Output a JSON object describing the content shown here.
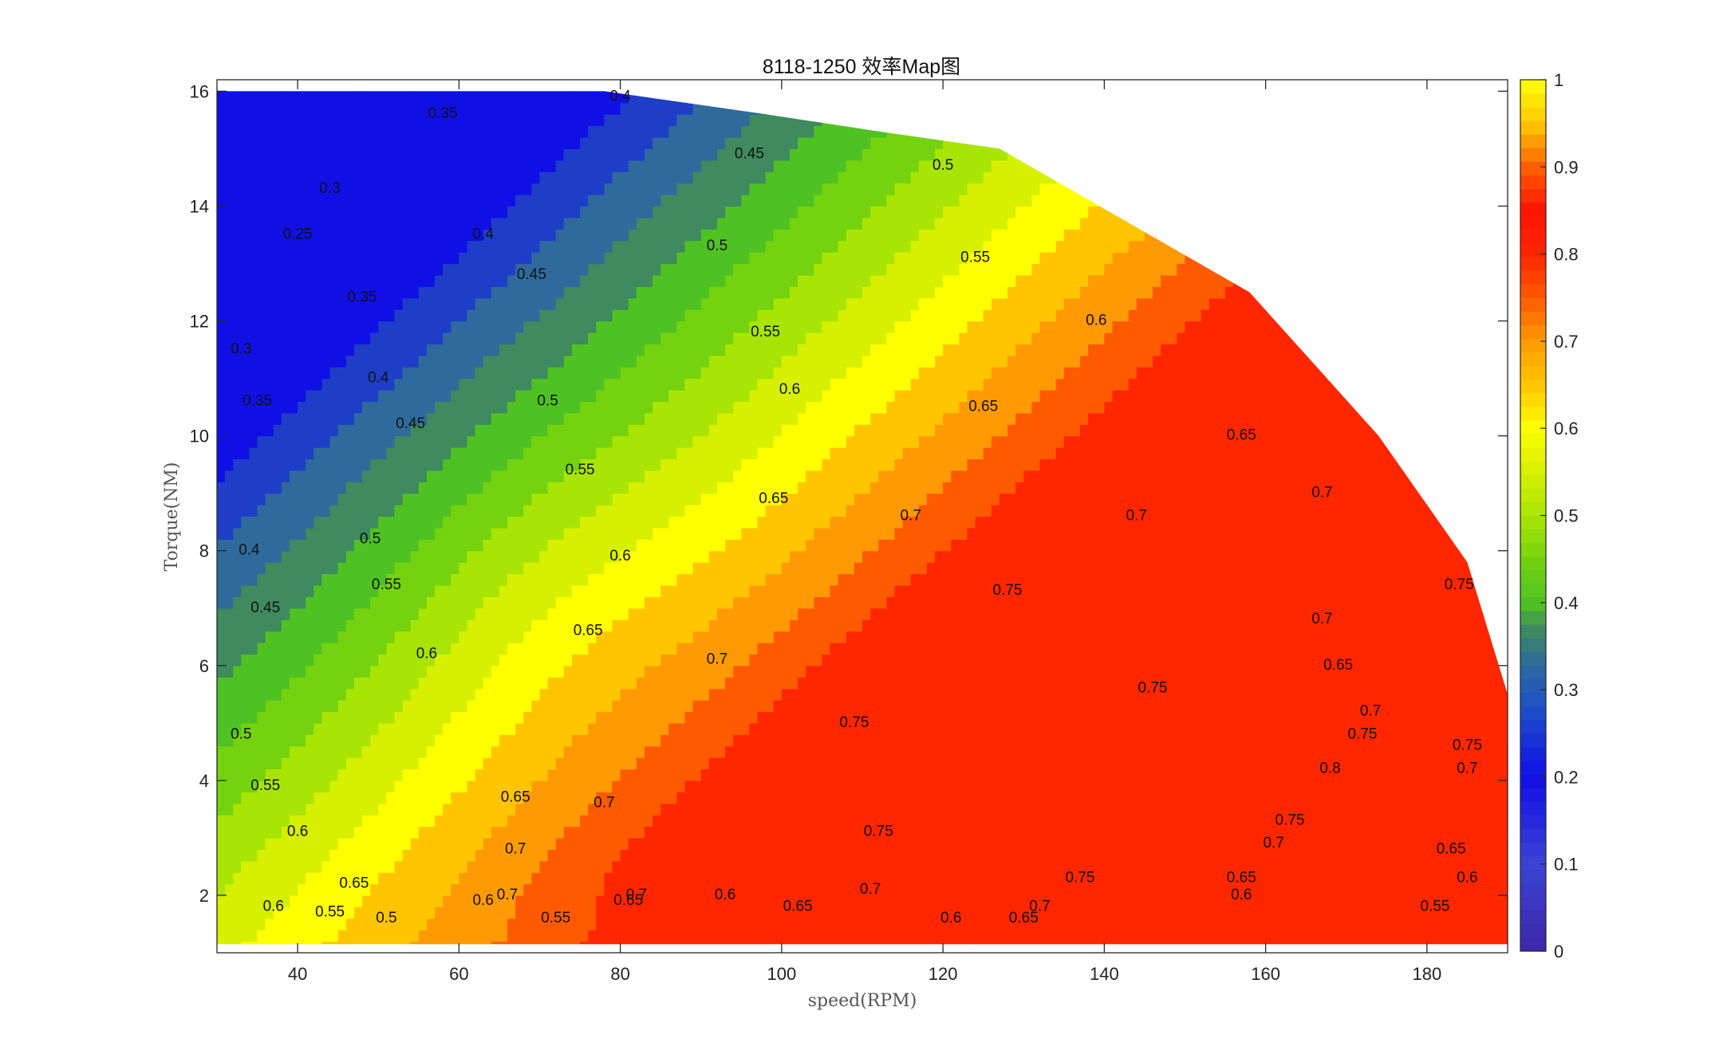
{
  "chart_data": {
    "type": "heatmap",
    "subtype": "filled-contour",
    "title": "8118-1250 效率Map图",
    "xlabel": "speed(RPM)",
    "ylabel": "Torque(NM)",
    "xlim": [
      30,
      190
    ],
    "ylim": [
      1,
      16.2
    ],
    "x_ticks": [
      "40",
      "60",
      "80",
      "100",
      "120",
      "140",
      "160",
      "180"
    ],
    "y_ticks": [
      "2",
      "4",
      "6",
      "8",
      "10",
      "12",
      "14",
      "16"
    ],
    "colorbar": {
      "limits": [
        0,
        1
      ],
      "ticks": [
        "0",
        "0.1",
        "0.2",
        "0.3",
        "0.4",
        "0.5",
        "0.6",
        "0.7",
        "0.8",
        "0.9",
        "1"
      ],
      "colormap": "parula-like (blue → green → yellow → orange → red → yellow)"
    },
    "contour_levels": [
      0.25,
      0.3,
      0.35,
      0.4,
      0.45,
      0.5,
      0.55,
      0.6,
      0.65,
      0.7,
      0.75,
      0.8
    ],
    "level_colors": {
      "0.2": "#1010e6",
      "0.25": "#1e3ec8",
      "0.3": "#2f6a9c",
      "0.35": "#3f8a5e",
      "0.4": "#4fc223",
      "0.45": "#74d30e",
      "0.5": "#a8e505",
      "0.55": "#d6f000",
      "0.6": "#ffff00",
      "0.65": "#ffc600",
      "0.7": "#ff9a05",
      "0.75": "#ff5a00",
      "0.8": "#ff2600"
    },
    "max_torque_envelope": [
      [
        30,
        16
      ],
      [
        78,
        16
      ],
      [
        98,
        15.6
      ],
      [
        112,
        15.3
      ],
      [
        127,
        15
      ],
      [
        158,
        12.5
      ],
      [
        174,
        10
      ],
      [
        185,
        7.8
      ],
      [
        190,
        5.5
      ]
    ],
    "contour_labels": [
      {
        "text": "0.25",
        "x": 40,
        "y": 13.5,
        "level": 0.25
      },
      {
        "text": "0.3",
        "x": 44,
        "y": 14.3,
        "level": 0.3
      },
      {
        "text": "0.3",
        "x": 33,
        "y": 11.5,
        "level": 0.3
      },
      {
        "text": "0.35",
        "x": 58,
        "y": 15.6,
        "level": 0.35
      },
      {
        "text": "0.35",
        "x": 48,
        "y": 12.4,
        "level": 0.35
      },
      {
        "text": "0.35",
        "x": 35,
        "y": 10.6,
        "level": 0.35
      },
      {
        "text": "0.4",
        "x": 80,
        "y": 15.9,
        "level": 0.4
      },
      {
        "text": "0.4",
        "x": 63,
        "y": 13.5,
        "level": 0.4
      },
      {
        "text": "0.4",
        "x": 50,
        "y": 11.0,
        "level": 0.4
      },
      {
        "text": "0.4",
        "x": 34,
        "y": 8.0,
        "level": 0.4
      },
      {
        "text": "0.45",
        "x": 96,
        "y": 14.9,
        "level": 0.45
      },
      {
        "text": "0.45",
        "x": 69,
        "y": 12.8,
        "level": 0.45
      },
      {
        "text": "0.45",
        "x": 54,
        "y": 10.2,
        "level": 0.45
      },
      {
        "text": "0.45",
        "x": 36,
        "y": 7.0,
        "level": 0.45
      },
      {
        "text": "0.5",
        "x": 120,
        "y": 14.7,
        "level": 0.5
      },
      {
        "text": "0.5",
        "x": 92,
        "y": 13.3,
        "level": 0.5
      },
      {
        "text": "0.5",
        "x": 71,
        "y": 10.6,
        "level": 0.5
      },
      {
        "text": "0.5",
        "x": 49,
        "y": 8.2,
        "level": 0.5
      },
      {
        "text": "0.5",
        "x": 33,
        "y": 4.8,
        "level": 0.5
      },
      {
        "text": "0.5",
        "x": 51,
        "y": 1.6,
        "level": 0.5
      },
      {
        "text": "0.55",
        "x": 124,
        "y": 13.1,
        "level": 0.55
      },
      {
        "text": "0.55",
        "x": 98,
        "y": 11.8,
        "level": 0.55
      },
      {
        "text": "0.55",
        "x": 75,
        "y": 9.4,
        "level": 0.55
      },
      {
        "text": "0.55",
        "x": 51,
        "y": 7.4,
        "level": 0.55
      },
      {
        "text": "0.55",
        "x": 36,
        "y": 3.9,
        "level": 0.55
      },
      {
        "text": "0.55",
        "x": 44,
        "y": 1.7,
        "level": 0.55
      },
      {
        "text": "0.55",
        "x": 72,
        "y": 1.6,
        "level": 0.55
      },
      {
        "text": "0.55",
        "x": 181,
        "y": 1.8,
        "level": 0.55
      },
      {
        "text": "0.6",
        "x": 139,
        "y": 12.0,
        "level": 0.6
      },
      {
        "text": "0.6",
        "x": 101,
        "y": 10.8,
        "level": 0.6
      },
      {
        "text": "0.6",
        "x": 80,
        "y": 7.9,
        "level": 0.6
      },
      {
        "text": "0.6",
        "x": 56,
        "y": 6.2,
        "level": 0.6
      },
      {
        "text": "0.6",
        "x": 40,
        "y": 3.1,
        "level": 0.6
      },
      {
        "text": "0.6",
        "x": 37,
        "y": 1.8,
        "level": 0.6
      },
      {
        "text": "0.6",
        "x": 63,
        "y": 1.9,
        "level": 0.6
      },
      {
        "text": "0.6",
        "x": 93,
        "y": 2.0,
        "level": 0.6
      },
      {
        "text": "0.6",
        "x": 121,
        "y": 1.6,
        "level": 0.6
      },
      {
        "text": "0.6",
        "x": 157,
        "y": 2.0,
        "level": 0.6
      },
      {
        "text": "0.6",
        "x": 185,
        "y": 2.3,
        "level": 0.6
      },
      {
        "text": "0.65",
        "x": 125,
        "y": 10.5,
        "level": 0.65
      },
      {
        "text": "0.65",
        "x": 157,
        "y": 10.0,
        "level": 0.65
      },
      {
        "text": "0.65",
        "x": 99,
        "y": 8.9,
        "level": 0.65
      },
      {
        "text": "0.65",
        "x": 76,
        "y": 6.6,
        "level": 0.65
      },
      {
        "text": "0.65",
        "x": 67,
        "y": 3.7,
        "level": 0.65
      },
      {
        "text": "0.65",
        "x": 47,
        "y": 2.2,
        "level": 0.65
      },
      {
        "text": "0.65",
        "x": 81,
        "y": 1.9,
        "level": 0.65
      },
      {
        "text": "0.65",
        "x": 102,
        "y": 1.8,
        "level": 0.65
      },
      {
        "text": "0.65",
        "x": 130,
        "y": 1.6,
        "level": 0.65
      },
      {
        "text": "0.65",
        "x": 157,
        "y": 2.3,
        "level": 0.65
      },
      {
        "text": "0.65",
        "x": 183,
        "y": 2.8,
        "level": 0.65
      },
      {
        "text": "0.65",
        "x": 169,
        "y": 6.0,
        "level": 0.65
      },
      {
        "text": "0.7",
        "x": 116,
        "y": 8.6,
        "level": 0.7
      },
      {
        "text": "0.7",
        "x": 144,
        "y": 8.6,
        "level": 0.7
      },
      {
        "text": "0.7",
        "x": 167,
        "y": 9.0,
        "level": 0.7
      },
      {
        "text": "0.7",
        "x": 167,
        "y": 6.8,
        "level": 0.7
      },
      {
        "text": "0.7",
        "x": 173,
        "y": 5.2,
        "level": 0.7
      },
      {
        "text": "0.7",
        "x": 92,
        "y": 6.1,
        "level": 0.7
      },
      {
        "text": "0.7",
        "x": 78,
        "y": 3.6,
        "level": 0.7
      },
      {
        "text": "0.7",
        "x": 67,
        "y": 2.8,
        "level": 0.7
      },
      {
        "text": "0.7",
        "x": 66,
        "y": 2.0,
        "level": 0.7
      },
      {
        "text": "0.7",
        "x": 82,
        "y": 2.0,
        "level": 0.7
      },
      {
        "text": "0.7",
        "x": 111,
        "y": 2.1,
        "level": 0.7
      },
      {
        "text": "0.7",
        "x": 132,
        "y": 1.8,
        "level": 0.7
      },
      {
        "text": "0.7",
        "x": 161,
        "y": 2.9,
        "level": 0.7
      },
      {
        "text": "0.7",
        "x": 185,
        "y": 4.2,
        "level": 0.7
      },
      {
        "text": "0.75",
        "x": 128,
        "y": 7.3,
        "level": 0.75
      },
      {
        "text": "0.75",
        "x": 109,
        "y": 5.0,
        "level": 0.75
      },
      {
        "text": "0.75",
        "x": 146,
        "y": 5.6,
        "level": 0.75
      },
      {
        "text": "0.75",
        "x": 112,
        "y": 3.1,
        "level": 0.75
      },
      {
        "text": "0.75",
        "x": 137,
        "y": 2.3,
        "level": 0.75
      },
      {
        "text": "0.75",
        "x": 163,
        "y": 3.3,
        "level": 0.75
      },
      {
        "text": "0.75",
        "x": 172,
        "y": 4.8,
        "level": 0.75
      },
      {
        "text": "0.75",
        "x": 184,
        "y": 7.4,
        "level": 0.75
      },
      {
        "text": "0.75",
        "x": 185,
        "y": 4.6,
        "level": 0.75
      },
      {
        "text": "0.8",
        "x": 168,
        "y": 4.2,
        "level": 0.8
      }
    ]
  }
}
